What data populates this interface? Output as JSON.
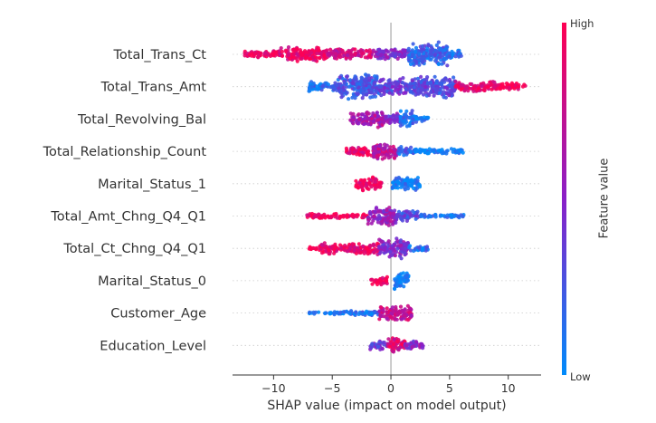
{
  "chart_data": {
    "type": "scatter",
    "subtype": "shap-beeswarm",
    "title": "",
    "xlabel": "SHAP value (impact on model output)",
    "ylabel": "",
    "xlim": [
      -13.5,
      12.8
    ],
    "xticks": [
      {
        "value": -10,
        "label": "−10"
      },
      {
        "value": -5,
        "label": "−5"
      },
      {
        "value": 0,
        "label": "0"
      },
      {
        "value": 5,
        "label": "5"
      },
      {
        "value": 10,
        "label": "10"
      }
    ],
    "colorbar": {
      "title": "Feature value",
      "high_label": "High",
      "low_label": "Low",
      "high_color": "#ff0052",
      "mid_color": "#8a1fc8",
      "low_color": "#008bfb"
    },
    "features": [
      {
        "name": "Total_Trans_Ct",
        "min": -12.5,
        "max": 6.0,
        "segments": [
          {
            "from": -12.5,
            "to": -9.5,
            "height": 0.3,
            "value": 0.95
          },
          {
            "from": -9.5,
            "to": -5.5,
            "height": 0.55,
            "value": 0.9
          },
          {
            "from": -5.5,
            "to": -1.5,
            "height": 0.4,
            "value": 0.8
          },
          {
            "from": -1.5,
            "to": 1.5,
            "height": 0.45,
            "value": 0.45
          },
          {
            "from": 1.5,
            "to": 4.8,
            "height": 0.95,
            "value": 0.18
          },
          {
            "from": 4.8,
            "to": 6.0,
            "height": 0.35,
            "value": 0.1
          }
        ]
      },
      {
        "name": "Total_Trans_Amt",
        "min": -7.0,
        "max": 11.5,
        "segments": [
          {
            "from": -7.0,
            "to": -4.5,
            "height": 0.4,
            "value": 0.15
          },
          {
            "from": -4.5,
            "to": -1.0,
            "height": 0.95,
            "value": 0.25
          },
          {
            "from": -1.0,
            "to": 1.5,
            "height": 0.7,
            "value": 0.35
          },
          {
            "from": 1.5,
            "to": 5.5,
            "height": 0.85,
            "value": 0.3
          },
          {
            "from": 5.5,
            "to": 9.0,
            "height": 0.4,
            "value": 0.9
          },
          {
            "from": 9.0,
            "to": 11.5,
            "height": 0.3,
            "value": 0.95
          }
        ]
      },
      {
        "name": "Total_Revolving_Bal",
        "min": -3.5,
        "max": 3.2,
        "segments": [
          {
            "from": -3.5,
            "to": -2.5,
            "height": 0.4,
            "value": 0.6
          },
          {
            "from": -2.5,
            "to": -0.5,
            "height": 0.65,
            "value": 0.65
          },
          {
            "from": -0.5,
            "to": 0.8,
            "height": 0.4,
            "value": 0.45
          },
          {
            "from": 0.8,
            "to": 2.0,
            "height": 0.65,
            "value": 0.15
          },
          {
            "from": 2.0,
            "to": 3.2,
            "height": 0.25,
            "value": 0.1
          }
        ]
      },
      {
        "name": "Total_Relationship_Count",
        "min": -3.8,
        "max": 6.2,
        "segments": [
          {
            "from": -3.8,
            "to": -1.5,
            "height": 0.35,
            "value": 0.9
          },
          {
            "from": -1.5,
            "to": 0.5,
            "height": 0.7,
            "value": 0.7
          },
          {
            "from": 0.5,
            "to": 2.0,
            "height": 0.35,
            "value": 0.2
          },
          {
            "from": 2.0,
            "to": 6.2,
            "height": 0.2,
            "value": 0.05
          }
        ]
      },
      {
        "name": "Marital_Status_1",
        "min": -3.0,
        "max": 2.5,
        "segments": [
          {
            "from": -3.0,
            "to": -0.8,
            "height": 0.5,
            "value": 0.95
          },
          {
            "from": 0.1,
            "to": 2.5,
            "height": 0.55,
            "value": 0.05
          }
        ]
      },
      {
        "name": "Total_Amt_Chng_Q4_Q1",
        "min": -7.2,
        "max": 6.2,
        "segments": [
          {
            "from": -7.2,
            "to": -2.0,
            "height": 0.2,
            "value": 0.95
          },
          {
            "from": -2.0,
            "to": 0.5,
            "height": 0.75,
            "value": 0.55
          },
          {
            "from": 0.5,
            "to": 2.5,
            "height": 0.45,
            "value": 0.3
          },
          {
            "from": 2.5,
            "to": 6.2,
            "height": 0.15,
            "value": 0.1
          }
        ]
      },
      {
        "name": "Total_Ct_Chng_Q4_Q1",
        "min": -7.0,
        "max": 3.2,
        "segments": [
          {
            "from": -7.0,
            "to": -6.0,
            "height": 0.15,
            "value": 0.95
          },
          {
            "from": -6.0,
            "to": -1.0,
            "height": 0.45,
            "value": 0.92
          },
          {
            "from": -1.0,
            "to": 1.5,
            "height": 0.75,
            "value": 0.5
          },
          {
            "from": 1.5,
            "to": 3.2,
            "height": 0.25,
            "value": 0.15
          }
        ]
      },
      {
        "name": "Marital_Status_0",
        "min": -1.7,
        "max": 1.5,
        "segments": [
          {
            "from": -1.7,
            "to": -0.2,
            "height": 0.35,
            "value": 0.95
          },
          {
            "from": 0.2,
            "to": 1.5,
            "height": 0.7,
            "value": 0.05
          }
        ]
      },
      {
        "name": "Customer_Age",
        "min": -7.0,
        "max": 1.8,
        "segments": [
          {
            "from": -7.0,
            "to": -4.0,
            "height": 0.12,
            "value": 0.05
          },
          {
            "from": -4.0,
            "to": -1.0,
            "height": 0.2,
            "value": 0.15
          },
          {
            "from": -1.0,
            "to": 1.8,
            "height": 0.65,
            "value": 0.75
          }
        ]
      },
      {
        "name": "Education_Level",
        "min": -1.8,
        "max": 3.0,
        "segments": [
          {
            "from": -1.8,
            "to": -0.3,
            "height": 0.35,
            "value": 0.4
          },
          {
            "from": -0.3,
            "to": 1.2,
            "height": 0.65,
            "value": 0.85
          },
          {
            "from": 1.2,
            "to": 3.0,
            "height": 0.35,
            "value": 0.5
          }
        ]
      }
    ]
  }
}
